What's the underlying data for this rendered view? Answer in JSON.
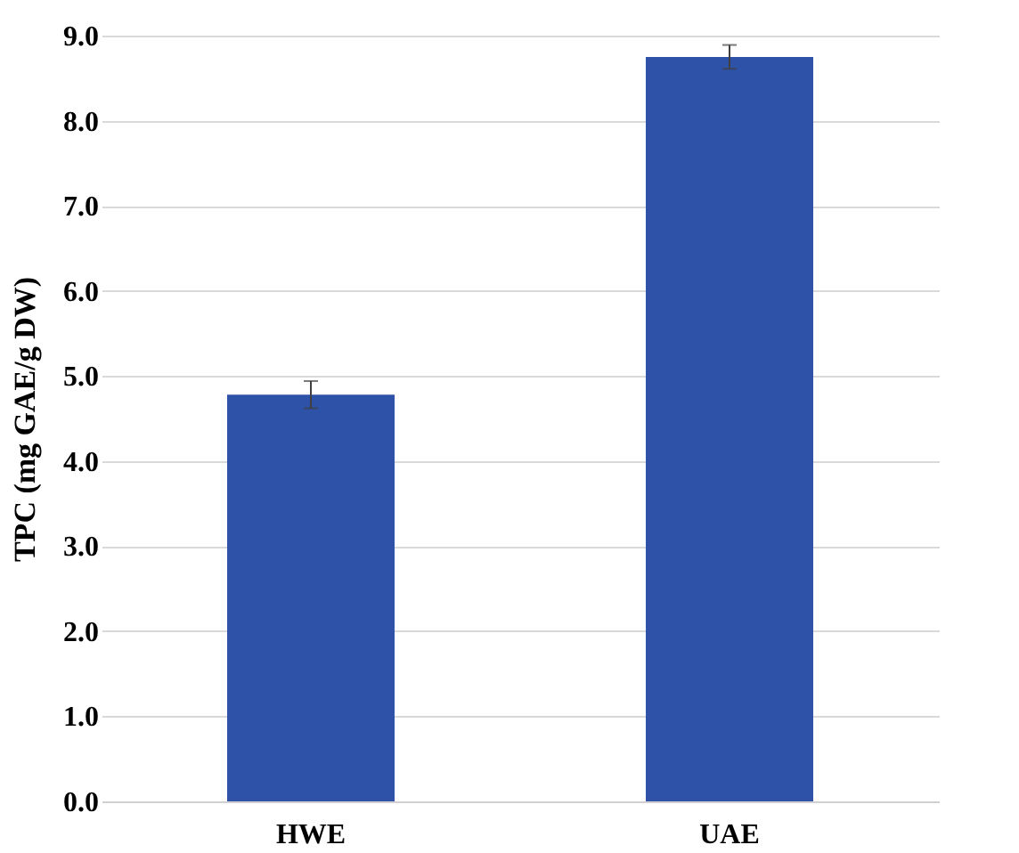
{
  "chart_data": {
    "type": "bar",
    "ylabel": "TPC (mg GAE/g DW)",
    "categories": [
      "HWE",
      "UAE"
    ],
    "values": [
      4.78,
      8.75
    ],
    "errors": [
      0.16,
      0.14
    ],
    "color": "#2e52a8",
    "ylim": [
      0,
      9
    ],
    "yticks": [
      {
        "value": 0,
        "label": "0.0"
      },
      {
        "value": 1,
        "label": "1.0"
      },
      {
        "value": 2,
        "label": "2.0"
      },
      {
        "value": 3,
        "label": "3.0"
      },
      {
        "value": 4,
        "label": "4.0"
      },
      {
        "value": 5,
        "label": "5.0"
      },
      {
        "value": 6,
        "label": "6.0"
      },
      {
        "value": 7,
        "label": "7.0"
      },
      {
        "value": 8,
        "label": "8.0"
      },
      {
        "value": 9,
        "label": "9.0"
      }
    ],
    "grid": "y"
  }
}
